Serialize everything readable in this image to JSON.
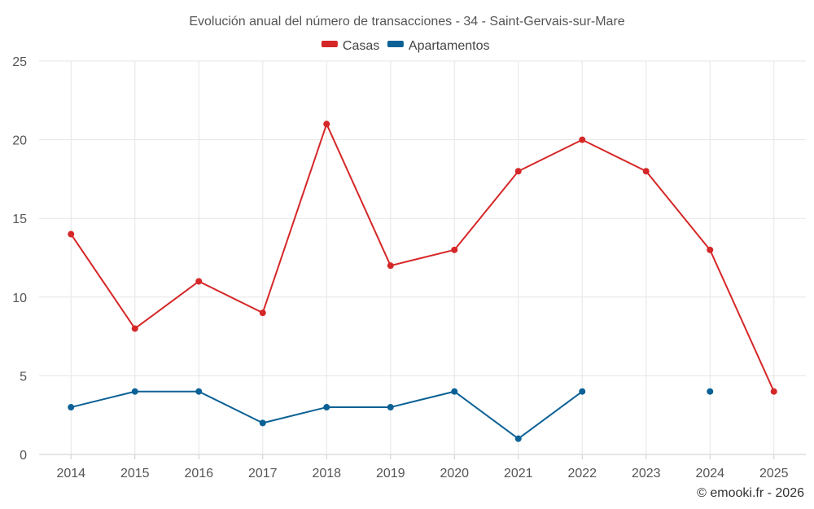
{
  "chart_data": {
    "type": "line",
    "title": "Evolución anual del número de transacciones - 34 - Saint-Gervais-sur-Mare",
    "xlabel": "",
    "ylabel": "",
    "categories": [
      "2014",
      "2015",
      "2016",
      "2017",
      "2018",
      "2019",
      "2020",
      "2021",
      "2022",
      "2023",
      "2024",
      "2025"
    ],
    "ylim": [
      0,
      25
    ],
    "yticks": [
      0,
      5,
      10,
      15,
      20,
      25
    ],
    "grid": true,
    "legend_position": "top-center",
    "series": [
      {
        "name": "Casas",
        "color": "#d62728",
        "values": [
          14,
          8,
          11,
          9,
          21,
          12,
          13,
          18,
          20,
          18,
          13,
          4
        ]
      },
      {
        "name": "Apartamentos",
        "color": "#0b6196",
        "values": [
          3,
          4,
          4,
          2,
          3,
          3,
          4,
          1,
          4,
          null,
          4,
          null
        ]
      }
    ]
  },
  "credit": "© emooki.fr - 2026"
}
